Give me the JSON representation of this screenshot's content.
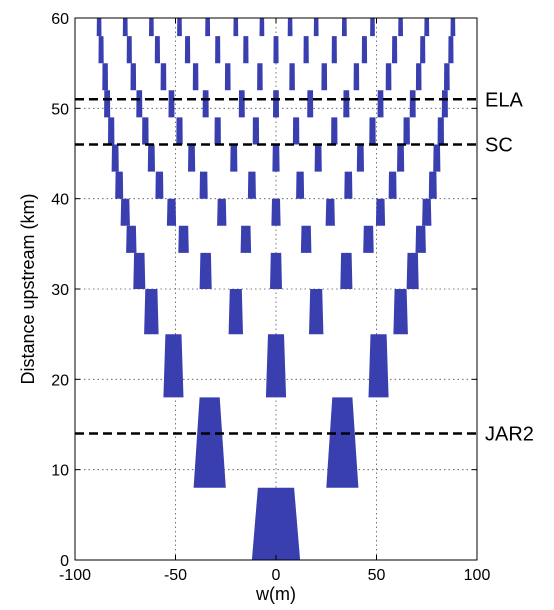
{
  "chart_data": {
    "type": "bar",
    "xlabel": "w(m)",
    "ylabel": "Distance upstream (km)",
    "xlim": [
      -100,
      100
    ],
    "ylim": [
      0,
      60
    ],
    "x_ticks": [
      -100,
      -50,
      0,
      50,
      100
    ],
    "y_ticks": [
      0,
      10,
      20,
      30,
      40,
      50,
      60
    ],
    "grid": true,
    "colors": {
      "bars": "#3a3fb0",
      "reference_lines": "#000000"
    },
    "reference_lines": [
      {
        "label": "ELA",
        "y": 51
      },
      {
        "label": "SC",
        "y": 46
      },
      {
        "label": "JAR2",
        "y": 14
      }
    ],
    "series": [
      {
        "y0": 0,
        "y1": 8,
        "bottom_half_width": 12,
        "top_half_width": 9,
        "centers": [
          0
        ]
      },
      {
        "y0": 8,
        "y1": 18,
        "bottom_half_width": 8,
        "top_half_width": 5,
        "centers": [
          -33,
          33
        ]
      },
      {
        "y0": 18,
        "y1": 25,
        "bottom_half_width": 5,
        "top_half_width": 4,
        "centers": [
          -51,
          0,
          51
        ]
      },
      {
        "y0": 25,
        "y1": 30,
        "bottom_half_width": 3.6,
        "top_half_width": 3,
        "centers": [
          -62,
          -20,
          20,
          62
        ]
      },
      {
        "y0": 30,
        "y1": 34,
        "bottom_half_width": 3,
        "top_half_width": 2.6,
        "centers": [
          -68,
          -35,
          0,
          35,
          68
        ]
      },
      {
        "y0": 34,
        "y1": 37,
        "bottom_half_width": 2.6,
        "top_half_width": 2.3,
        "centers": [
          -72,
          -46,
          -15,
          15,
          46,
          72
        ]
      },
      {
        "y0": 37,
        "y1": 40,
        "bottom_half_width": 2.3,
        "top_half_width": 2,
        "centers": [
          -75,
          -52,
          -27,
          0,
          27,
          52,
          75
        ]
      },
      {
        "y0": 40,
        "y1": 43,
        "bottom_half_width": 2,
        "top_half_width": 1.8,
        "centers": [
          -78,
          -58,
          -36,
          -12,
          12,
          36,
          58,
          78
        ]
      },
      {
        "y0": 43,
        "y1": 46,
        "bottom_half_width": 1.8,
        "top_half_width": 1.6,
        "centers": [
          -80,
          -62,
          -42,
          -21,
          0,
          21,
          42,
          62,
          80
        ]
      },
      {
        "y0": 46,
        "y1": 49,
        "bottom_half_width": 1.6,
        "top_half_width": 1.5,
        "centers": [
          -82,
          -65,
          -48,
          -29,
          -10,
          10,
          29,
          48,
          65,
          82
        ]
      },
      {
        "y0": 49,
        "y1": 52,
        "bottom_half_width": 1.5,
        "top_half_width": 1.4,
        "centers": [
          -84,
          -68,
          -52,
          -35,
          -17,
          0,
          17,
          35,
          52,
          68,
          84
        ]
      },
      {
        "y0": 52,
        "y1": 55,
        "bottom_half_width": 1.4,
        "top_half_width": 1.3,
        "centers": [
          -85,
          -71,
          -56,
          -40,
          -24,
          -8,
          8,
          24,
          40,
          56,
          71,
          85
        ]
      },
      {
        "y0": 55,
        "y1": 58,
        "bottom_half_width": 1.3,
        "top_half_width": 1.2,
        "centers": [
          -87,
          -73,
          -59,
          -44,
          -29,
          -15,
          0,
          15,
          29,
          44,
          59,
          73,
          87
        ]
      },
      {
        "y0": 58,
        "y1": 60,
        "bottom_half_width": 1.2,
        "top_half_width": 1.1,
        "centers": [
          -88,
          -75,
          -62,
          -48,
          -34,
          -20,
          -7,
          7,
          20,
          34,
          48,
          62,
          75,
          88
        ]
      }
    ]
  }
}
